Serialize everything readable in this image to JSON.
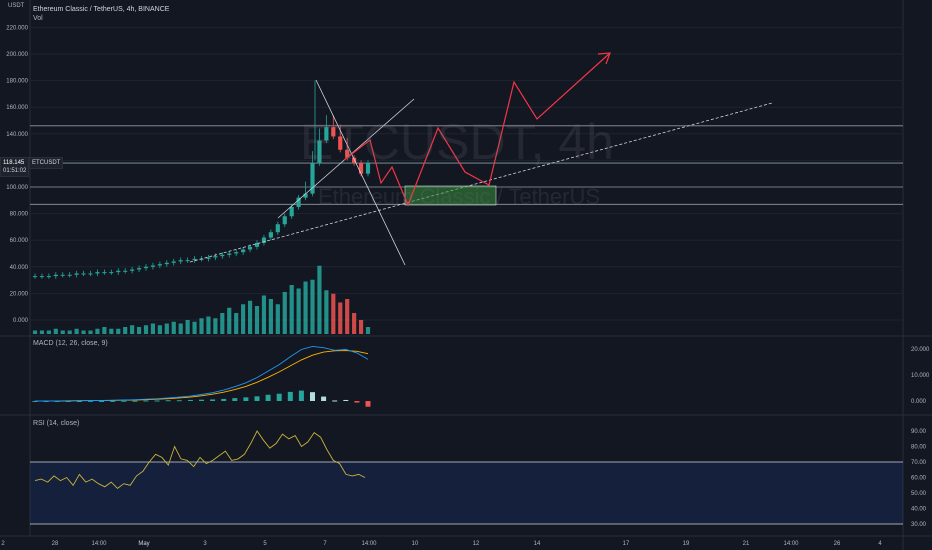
{
  "header": {
    "unit": "USDT",
    "title": "Ethereum Classic / TetherUS, 4h, BINANCE",
    "sub": "Vol"
  },
  "watermark": {
    "symbol": "ETCUSDT, 4h",
    "name": "Ethereum Classic / TetherUS"
  },
  "price_badge": {
    "value": "118.145",
    "countdown": "01:51:02",
    "symbol": "ETCUSDT"
  },
  "macd": {
    "label": "MACD (12, 26, close, 9)"
  },
  "rsi": {
    "label": "RSI (14, close)"
  },
  "colors": {
    "up": "#26a69a",
    "down": "#ef5350",
    "drawing_red": "#f23645",
    "macd_line": "#2196f3",
    "signal_line": "#ffb300",
    "rsi_line": "#c8b33a"
  },
  "chart_data": [
    {
      "type": "candlestick",
      "panel": "price",
      "y_ticks": [
        "220.000",
        "200.000",
        "180.000",
        "160.000",
        "140.000",
        "120.000",
        "100.000",
        "80.000",
        "60.000",
        "40.000",
        "20.000",
        "0.000"
      ],
      "x_ticks": [
        "2",
        "28",
        "14:00",
        "May",
        "3",
        "5",
        "7",
        "14:00",
        "10",
        "12",
        "14",
        "17",
        "19",
        "21",
        "14:00",
        "26",
        "4"
      ],
      "last_price": 118.145,
      "horizontal_levels": [
        146,
        118,
        100,
        87
      ],
      "close_series": [
        33,
        33,
        33,
        34,
        34,
        34,
        35,
        35,
        35,
        36,
        36,
        36,
        37,
        37,
        38,
        39,
        40,
        41,
        42,
        43,
        44,
        45,
        45,
        46,
        46,
        47,
        48,
        49,
        50,
        51,
        53,
        55,
        58,
        62,
        66,
        72,
        78,
        85,
        92,
        95,
        118,
        135,
        145,
        138,
        128,
        122,
        118,
        110,
        118
      ],
      "volume_bars": [
        2,
        2,
        2,
        3,
        2,
        2,
        3,
        2,
        2,
        3,
        4,
        3,
        3,
        4,
        5,
        4,
        5,
        6,
        5,
        6,
        7,
        6,
        8,
        7,
        9,
        10,
        9,
        12,
        15,
        12,
        17,
        19,
        16,
        22,
        20,
        17,
        24,
        28,
        26,
        30,
        31,
        39,
        25,
        23,
        18,
        20,
        12,
        8,
        4
      ]
    },
    {
      "type": "line",
      "panel": "macd",
      "y_ticks": [
        "20.000",
        "10.000",
        "0.000"
      ],
      "series": [
        {
          "name": "MACD",
          "values": [
            0,
            0,
            0,
            0.1,
            0.1,
            0.2,
            0.2,
            0.3,
            0.4,
            0.5,
            0.7,
            0.9,
            1.2,
            1.5,
            1.9,
            2.5,
            3.2,
            4.2,
            5.5,
            7,
            9,
            11.5,
            14,
            17,
            19.8,
            21,
            20.5,
            19.5,
            19.8,
            18.5,
            16
          ]
        },
        {
          "name": "Signal",
          "values": [
            0,
            0,
            0,
            0.05,
            0.1,
            0.15,
            0.2,
            0.25,
            0.3,
            0.4,
            0.5,
            0.7,
            0.9,
            1.2,
            1.5,
            2,
            2.6,
            3.4,
            4.4,
            5.6,
            7.2,
            9.1,
            11.2,
            13.5,
            15.8,
            17.6,
            18.8,
            19.3,
            19.4,
            19.1,
            18.2
          ]
        },
        {
          "name": "Histogram",
          "values": [
            0,
            0,
            0,
            0.05,
            0,
            0.05,
            0,
            0.05,
            0.1,
            0.1,
            0.2,
            0.2,
            0.3,
            0.3,
            0.4,
            0.5,
            0.6,
            0.8,
            1.1,
            1.4,
            1.8,
            2.4,
            2.8,
            3.5,
            4,
            3.4,
            1.7,
            0.2,
            0.4,
            -0.6,
            -2.2
          ]
        }
      ]
    },
    {
      "type": "line",
      "panel": "rsi",
      "y_ticks": [
        "90.00",
        "80.00",
        "70.00",
        "60.00",
        "50.00",
        "40.00",
        "30.00"
      ],
      "bands": [
        70,
        30
      ],
      "series": [
        {
          "name": "RSI",
          "values": [
            58,
            59,
            57,
            61,
            58,
            60,
            55,
            62,
            57,
            59,
            56,
            54,
            57,
            53,
            56,
            55,
            61,
            64,
            70,
            75,
            73,
            68,
            80,
            72,
            71,
            67,
            73,
            69,
            71,
            74,
            77,
            71,
            72,
            75,
            82,
            90,
            84,
            79,
            82,
            88,
            85,
            87,
            80,
            83,
            89,
            86,
            78,
            71,
            69,
            62,
            61,
            62,
            60
          ]
        }
      ]
    }
  ]
}
